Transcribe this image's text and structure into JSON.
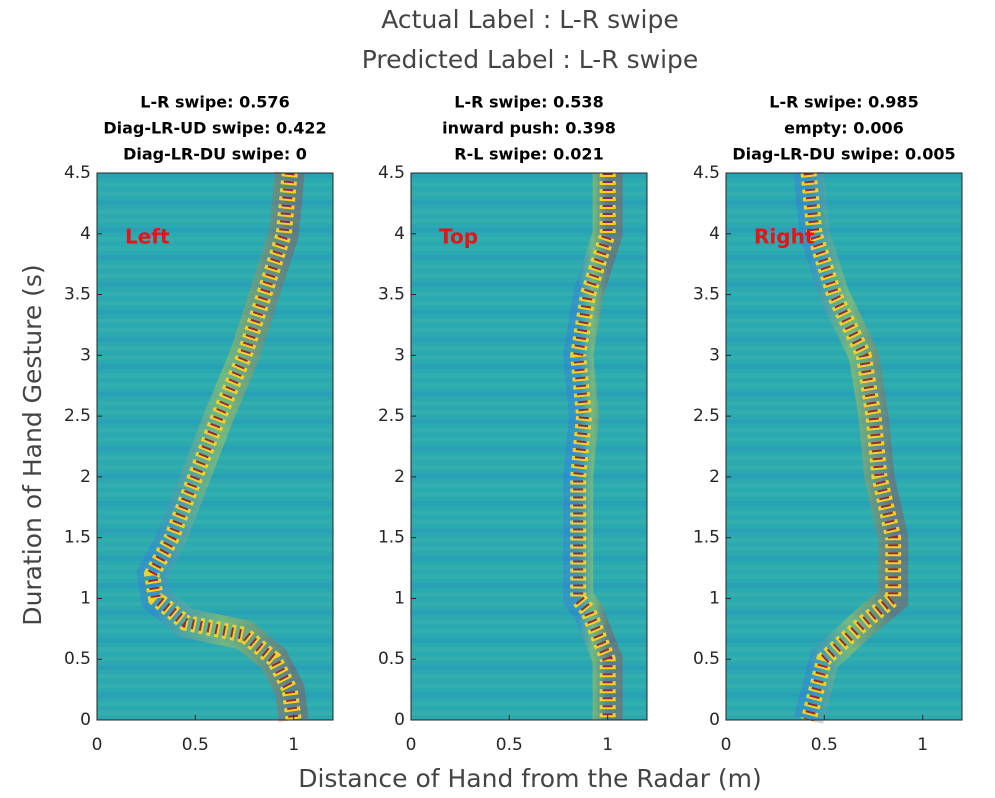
{
  "figure": {
    "title": [
      "Actual Label : L-R swipe",
      "Predicted Label : L-R swipe"
    ],
    "xlabel": "Distance of Hand from the Radar (m)",
    "ylabel": "Duration of Hand Gesture (s)"
  },
  "chart_data": [
    {
      "type": "heatmap",
      "title": [
        "L-R swipe: 0.576",
        "Diag-LR-UD swipe: 0.422",
        "Diag-LR-DU swipe: 0"
      ],
      "annotation": "Left",
      "color": "#2aa9b0",
      "x": [
        0.98,
        0.95,
        0.85,
        0.75,
        0.62,
        0.5,
        0.38,
        0.28,
        0.3,
        0.45,
        0.75,
        0.9,
        0.98,
        1.0
      ],
      "y": [
        4.5,
        4.0,
        3.5,
        3.0,
        2.5,
        2.0,
        1.5,
        1.2,
        1.0,
        0.8,
        0.7,
        0.5,
        0.25,
        0
      ],
      "xlim": [
        0,
        1.2
      ],
      "ylim": [
        0,
        4.5
      ],
      "xticks": [
        0,
        0.5,
        1
      ],
      "yticks": [
        0,
        0.5,
        1,
        1.5,
        2,
        2.5,
        3,
        3.5,
        4,
        4.5
      ]
    },
    {
      "type": "heatmap",
      "title": [
        "L-R swipe: 0.538",
        "inward push: 0.398",
        "R-L swipe: 0.021"
      ],
      "annotation": "Top",
      "color": "#2aa9b0",
      "x": [
        1.0,
        1.0,
        0.9,
        0.85,
        0.88,
        0.85,
        0.85,
        0.85,
        0.9,
        1.0,
        1.0
      ],
      "y": [
        4.5,
        4.0,
        3.5,
        3.0,
        2.5,
        2.0,
        1.5,
        1.0,
        0.9,
        0.5,
        0
      ],
      "xlim": [
        0,
        1.2
      ],
      "ylim": [
        0,
        4.5
      ],
      "xticks": [
        0,
        0.5,
        1
      ],
      "yticks": [
        0,
        0.5,
        1,
        1.5,
        2,
        2.5,
        3,
        3.5,
        4,
        4.5
      ]
    },
    {
      "type": "heatmap",
      "title": [
        "L-R swipe: 0.985",
        "empty: 0.006",
        "Diag-LR-DU swipe: 0.005"
      ],
      "annotation": "Right",
      "color": "#2aa9b0",
      "x": [
        0.42,
        0.45,
        0.55,
        0.7,
        0.75,
        0.78,
        0.85,
        0.85,
        0.7,
        0.5,
        0.42
      ],
      "y": [
        4.5,
        4.0,
        3.5,
        3.0,
        2.5,
        2.0,
        1.5,
        1.0,
        0.8,
        0.5,
        0
      ],
      "xlim": [
        0,
        1.2
      ],
      "ylim": [
        0,
        4.5
      ],
      "xticks": [
        0,
        0.5,
        1
      ],
      "yticks": [
        0,
        0.5,
        1,
        1.5,
        2,
        2.5,
        3,
        3.5,
        4,
        4.5
      ]
    }
  ]
}
